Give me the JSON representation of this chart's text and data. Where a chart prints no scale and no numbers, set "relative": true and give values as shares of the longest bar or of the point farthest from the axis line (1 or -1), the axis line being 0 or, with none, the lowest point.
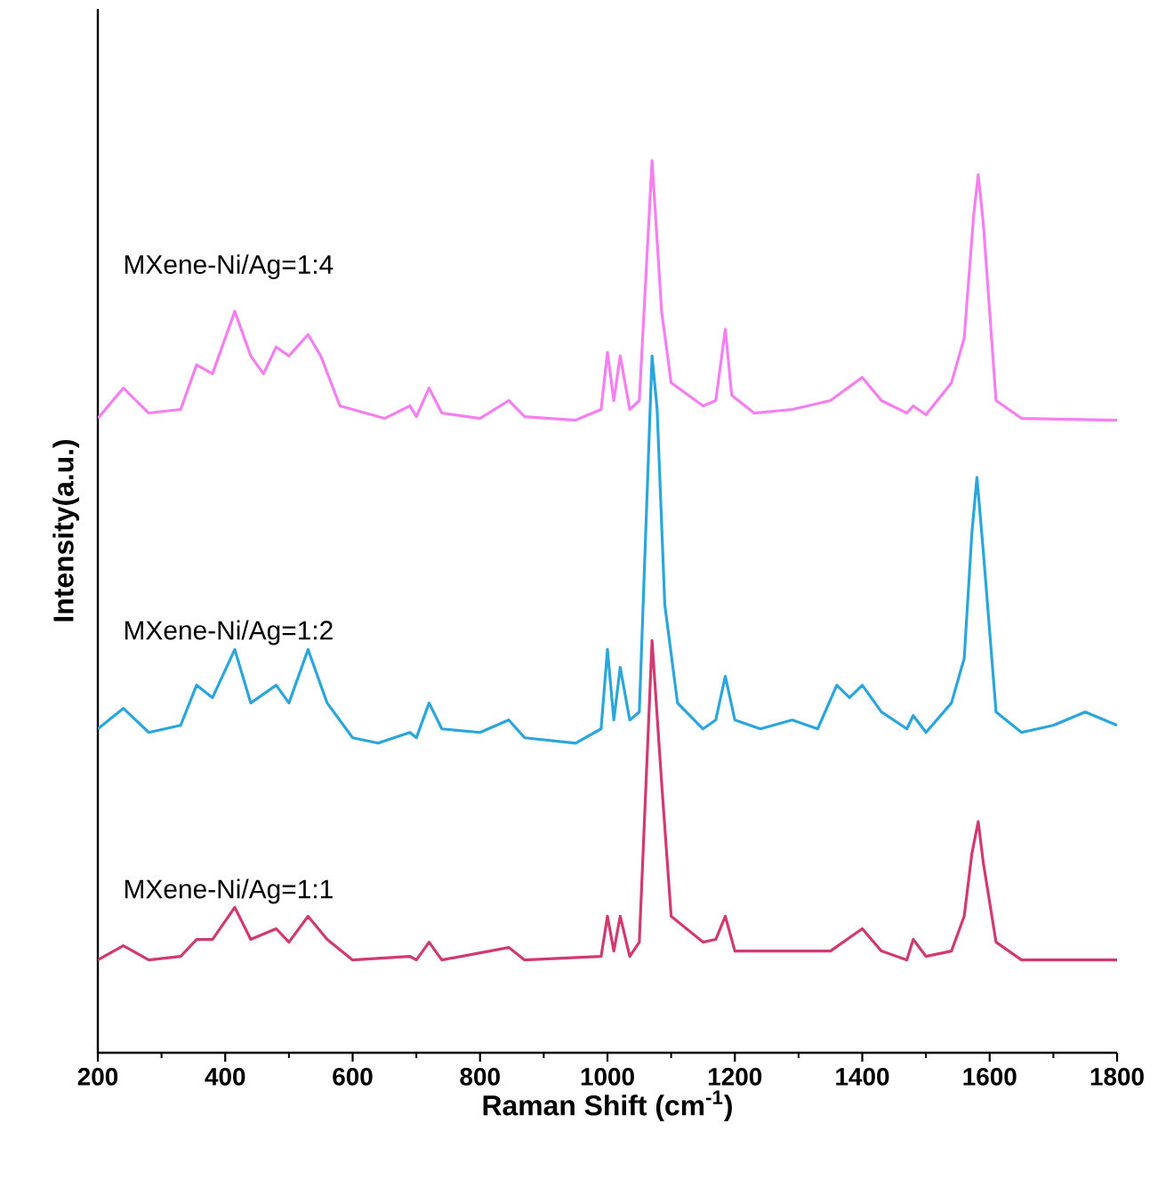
{
  "chart_data": {
    "type": "line",
    "relative": true,
    "xlabel": "Raman Shift (cm$^{-1}$)",
    "ylabel": "Intensity(a.u.)",
    "xlim": [
      200,
      1800
    ],
    "xticks": [
      200,
      400,
      600,
      800,
      1000,
      1200,
      1400,
      1600,
      1800
    ],
    "grid": false,
    "marker": "none",
    "line_style": "solid",
    "series": [
      {
        "name": "MXene-Ni/Ag=1:4",
        "color": "#f57ef0",
        "x": [
          200,
          240,
          280,
          330,
          355,
          380,
          415,
          440,
          460,
          480,
          500,
          530,
          550,
          580,
          650,
          690,
          700,
          720,
          740,
          800,
          845,
          870,
          950,
          990,
          1000,
          1010,
          1020,
          1035,
          1050,
          1070,
          1085,
          1100,
          1150,
          1170,
          1185,
          1195,
          1230,
          1290,
          1350,
          1400,
          1430,
          1470,
          1480,
          1500,
          1540,
          1560,
          1575,
          1582,
          1590,
          1610,
          1650,
          1800
        ],
        "values": [
          0.711,
          0.745,
          0.717,
          0.721,
          0.771,
          0.761,
          0.831,
          0.781,
          0.761,
          0.791,
          0.781,
          0.805,
          0.781,
          0.725,
          0.711,
          0.725,
          0.713,
          0.745,
          0.717,
          0.711,
          0.731,
          0.713,
          0.709,
          0.721,
          0.785,
          0.731,
          0.781,
          0.721,
          0.731,
          1.0,
          0.831,
          0.751,
          0.725,
          0.731,
          0.811,
          0.737,
          0.717,
          0.721,
          0.731,
          0.757,
          0.731,
          0.717,
          0.725,
          0.715,
          0.751,
          0.801,
          0.94,
          0.984,
          0.93,
          0.731,
          0.711,
          0.709
        ]
      },
      {
        "name": "MXene-Ni/Ag=1:2",
        "color": "#2ba6dc",
        "x": [
          200,
          240,
          280,
          330,
          355,
          380,
          415,
          440,
          480,
          500,
          530,
          560,
          600,
          640,
          690,
          700,
          720,
          740,
          800,
          845,
          870,
          950,
          990,
          1000,
          1010,
          1020,
          1035,
          1050,
          1070,
          1078,
          1090,
          1110,
          1150,
          1170,
          1185,
          1200,
          1240,
          1290,
          1330,
          1360,
          1380,
          1400,
          1430,
          1470,
          1480,
          1500,
          1540,
          1560,
          1572,
          1580,
          1590,
          1610,
          1650,
          1700,
          1750,
          1800
        ],
        "values": [
          0.363,
          0.386,
          0.359,
          0.367,
          0.412,
          0.398,
          0.452,
          0.392,
          0.412,
          0.392,
          0.452,
          0.392,
          0.353,
          0.347,
          0.359,
          0.353,
          0.392,
          0.363,
          0.359,
          0.373,
          0.353,
          0.347,
          0.363,
          0.452,
          0.373,
          0.432,
          0.373,
          0.382,
          0.781,
          0.721,
          0.502,
          0.392,
          0.363,
          0.373,
          0.422,
          0.373,
          0.363,
          0.373,
          0.363,
          0.412,
          0.398,
          0.412,
          0.382,
          0.363,
          0.378,
          0.359,
          0.392,
          0.442,
          0.582,
          0.645,
          0.562,
          0.382,
          0.359,
          0.367,
          0.382,
          0.367
        ]
      },
      {
        "name": "MXene-Ni/Ag=1:1",
        "color": "#d03a70",
        "x": [
          200,
          240,
          280,
          330,
          355,
          380,
          415,
          440,
          480,
          500,
          530,
          560,
          600,
          690,
          700,
          720,
          740,
          845,
          870,
          990,
          1000,
          1010,
          1020,
          1035,
          1050,
          1070,
          1085,
          1100,
          1150,
          1170,
          1185,
          1200,
          1290,
          1350,
          1400,
          1430,
          1470,
          1480,
          1500,
          1540,
          1560,
          1572,
          1582,
          1590,
          1610,
          1650,
          1800
        ],
        "values": [
          0.104,
          0.12,
          0.104,
          0.108,
          0.127,
          0.127,
          0.163,
          0.127,
          0.139,
          0.124,
          0.153,
          0.127,
          0.104,
          0.108,
          0.104,
          0.124,
          0.104,
          0.118,
          0.104,
          0.108,
          0.153,
          0.114,
          0.153,
          0.108,
          0.124,
          0.462,
          0.303,
          0.153,
          0.124,
          0.127,
          0.153,
          0.114,
          0.114,
          0.114,
          0.139,
          0.114,
          0.104,
          0.127,
          0.108,
          0.114,
          0.153,
          0.223,
          0.259,
          0.213,
          0.124,
          0.104,
          0.104
        ]
      }
    ]
  }
}
